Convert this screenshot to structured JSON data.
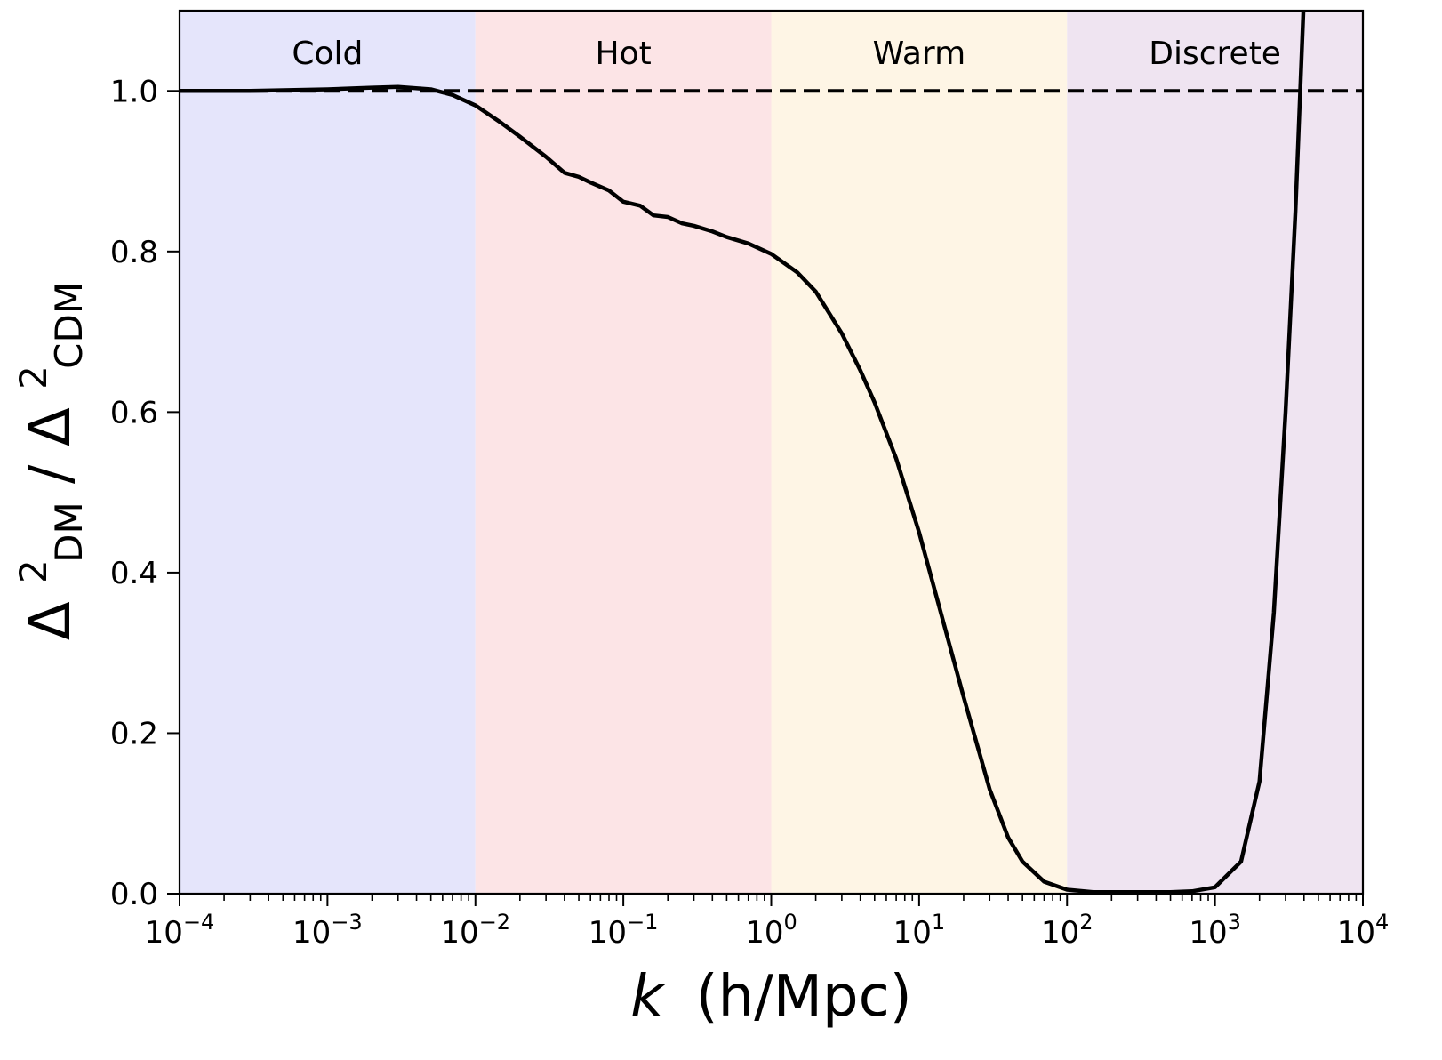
{
  "chart_data": {
    "type": "line",
    "xlabel": "k (h/Mpc)",
    "xlabel_var": "k",
    "xlabel_unit": "(h/Mpc)",
    "ylabel": "Δ²_DM/Δ²_CDM",
    "ylabel_parts": {
      "delta": "Δ",
      "sup": "2",
      "sub_num": "DM",
      "slash": "/",
      "sub_den": "CDM"
    },
    "xscale": "log",
    "xlim": [
      0.0001,
      10000
    ],
    "ylim": [
      0.0,
      1.1
    ],
    "grid": false,
    "x_ticks": [
      {
        "base": "10",
        "exp": "−4",
        "value": 0.0001
      },
      {
        "base": "10",
        "exp": "−3",
        "value": 0.001
      },
      {
        "base": "10",
        "exp": "−2",
        "value": 0.01
      },
      {
        "base": "10",
        "exp": "−1",
        "value": 0.1
      },
      {
        "base": "10",
        "exp": "0",
        "value": 1
      },
      {
        "base": "10",
        "exp": "1",
        "value": 10
      },
      {
        "base": "10",
        "exp": "2",
        "value": 100
      },
      {
        "base": "10",
        "exp": "3",
        "value": 1000
      },
      {
        "base": "10",
        "exp": "4",
        "value": 10000
      }
    ],
    "y_ticks": [
      {
        "label": "0.0",
        "value": 0.0
      },
      {
        "label": "0.2",
        "value": 0.2
      },
      {
        "label": "0.4",
        "value": 0.4
      },
      {
        "label": "0.6",
        "value": 0.6
      },
      {
        "label": "0.8",
        "value": 0.8
      },
      {
        "label": "1.0",
        "value": 1.0
      }
    ],
    "regions": [
      {
        "label": "Cold",
        "x0": 0.0001,
        "x1": 0.01,
        "color": "#e5e5fb"
      },
      {
        "label": "Hot",
        "x0": 0.01,
        "x1": 1,
        "color": "#fce4e6"
      },
      {
        "label": "Warm",
        "x0": 1,
        "x1": 100,
        "color": "#fef5e5"
      },
      {
        "label": "Discrete",
        "x0": 100,
        "x1": 10000,
        "color": "#efe4f1"
      }
    ],
    "reference_line": {
      "y": 1.0,
      "style": "dashed",
      "color": "#000000"
    },
    "series": [
      {
        "color": "#000000",
        "x": [
          0.0001,
          0.0003,
          0.001,
          0.002,
          0.003,
          0.005,
          0.007,
          0.01,
          0.015,
          0.02,
          0.03,
          0.04,
          0.05,
          0.06,
          0.08,
          0.1,
          0.13,
          0.16,
          0.2,
          0.25,
          0.3,
          0.4,
          0.5,
          0.7,
          1,
          1.5,
          2,
          3,
          4,
          5,
          7,
          10,
          15,
          20,
          30,
          40,
          50,
          70,
          100,
          150,
          200,
          300,
          500,
          700,
          1000,
          1500,
          2000,
          2500,
          3000,
          3500,
          4000
        ],
        "y": [
          1.0,
          1.0,
          1.002,
          1.004,
          1.005,
          1.002,
          0.995,
          0.982,
          0.96,
          0.943,
          0.918,
          0.898,
          0.893,
          0.886,
          0.876,
          0.862,
          0.857,
          0.845,
          0.843,
          0.835,
          0.832,
          0.825,
          0.818,
          0.81,
          0.797,
          0.774,
          0.75,
          0.698,
          0.652,
          0.612,
          0.542,
          0.45,
          0.33,
          0.245,
          0.13,
          0.07,
          0.04,
          0.015,
          0.005,
          0.002,
          0.002,
          0.002,
          0.002,
          0.003,
          0.008,
          0.04,
          0.14,
          0.35,
          0.6,
          0.85,
          1.12
        ]
      }
    ]
  }
}
